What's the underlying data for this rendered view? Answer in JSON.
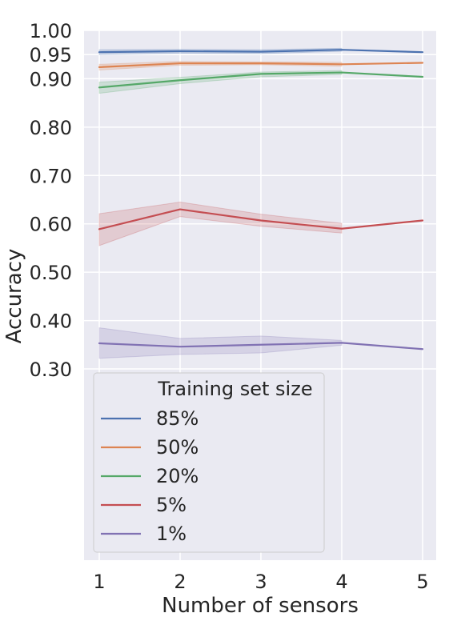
{
  "chart_data": {
    "type": "line",
    "xlabel": "Number of sensors",
    "ylabel": "Accuracy",
    "x": [
      1,
      2,
      3,
      4,
      5
    ],
    "x_ticks": [
      "1",
      "2",
      "3",
      "4",
      "5"
    ],
    "y_ticks": [
      "0.30",
      "0.40",
      "0.50",
      "0.60",
      "0.70",
      "0.80",
      "0.90",
      "0.95",
      "1.00"
    ],
    "ylim": [
      0.3,
      1.0
    ],
    "grid": true,
    "legend_title": "Training set size",
    "legend_position": "lower-left",
    "series": [
      {
        "name": "85%",
        "color": "#4c72b0",
        "values": [
          0.955,
          0.957,
          0.956,
          0.96,
          0.955
        ],
        "lower": [
          0.95,
          0.953,
          0.952,
          0.957,
          null
        ],
        "upper": [
          0.96,
          0.961,
          0.96,
          0.963,
          null
        ]
      },
      {
        "name": "50%",
        "color": "#dd8452",
        "values": [
          0.924,
          0.932,
          0.932,
          0.93,
          0.933
        ],
        "lower": [
          0.918,
          0.928,
          0.929,
          0.926,
          null
        ],
        "upper": [
          0.93,
          0.936,
          0.935,
          0.934,
          null
        ]
      },
      {
        "name": "20%",
        "color": "#55a868",
        "values": [
          0.882,
          0.897,
          0.91,
          0.913,
          0.904
        ],
        "lower": [
          0.87,
          0.89,
          0.904,
          0.909,
          null
        ],
        "upper": [
          0.893,
          0.903,
          0.914,
          0.917,
          null
        ]
      },
      {
        "name": "5%",
        "color": "#c44e52",
        "values": [
          0.589,
          0.63,
          0.607,
          0.59,
          0.607
        ],
        "lower": [
          0.555,
          0.615,
          0.595,
          0.581,
          null
        ],
        "upper": [
          0.621,
          0.645,
          0.62,
          0.601,
          null
        ]
      },
      {
        "name": "1%",
        "color": "#8172b3",
        "values": [
          0.353,
          0.346,
          0.35,
          0.354,
          0.341
        ],
        "lower": [
          0.322,
          0.33,
          0.333,
          0.349,
          null
        ],
        "upper": [
          0.385,
          0.363,
          0.368,
          0.359,
          null
        ]
      }
    ]
  }
}
